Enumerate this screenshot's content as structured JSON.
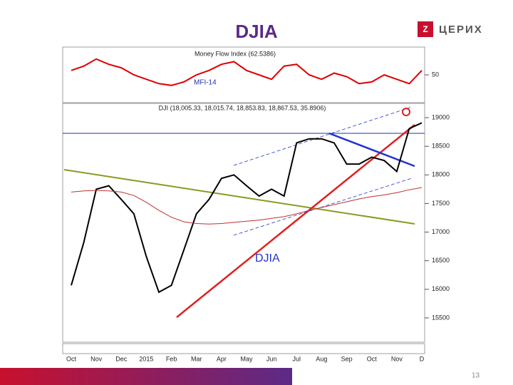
{
  "title": "DJIA",
  "logo": "ЦЕРИХ",
  "page_number": "13",
  "chart_data": [
    {
      "type": "line",
      "title": "Money Flow Index (62.5386)",
      "annotation": "MFI-14",
      "series": [
        {
          "color": "#e00000",
          "values": [
            55,
            60,
            68,
            62,
            58,
            50,
            45,
            40,
            38,
            42,
            50,
            55,
            62,
            65,
            55,
            50,
            45,
            60,
            62,
            50,
            45,
            52,
            48,
            40,
            42,
            50,
            45,
            40,
            55
          ]
        }
      ],
      "ylim": [
        20,
        80
      ],
      "yticks": [
        50
      ]
    },
    {
      "type": "line",
      "title": "DJI (18,005.33, 18,015.74, 18,853.83, 18,867.53, 35.8906)",
      "annotation": "DJIA",
      "categories": [
        "Oct",
        null,
        "Nov",
        null,
        "Dec",
        null,
        "2015",
        null,
        "Feb",
        null,
        "Mar",
        null,
        "Apr",
        null,
        "May",
        null,
        "Jun",
        null,
        "Jul",
        null,
        "Aug",
        null,
        "Sep",
        null,
        "Oct",
        null,
        "Nov",
        null,
        "D"
      ],
      "series": [
        {
          "color": "#000000",
          "values": [
            16070,
            16820,
            17750,
            17810,
            17570,
            17320,
            16570,
            15950,
            16070,
            16690,
            17320,
            17570,
            17940,
            18000,
            17810,
            17630,
            17750,
            17630,
            18560,
            18630,
            18630,
            18560,
            18190,
            18190,
            18310,
            18250,
            18060,
            18810,
            18910
          ]
        },
        {
          "color": "#c03030",
          "values": [
            17700,
            17720,
            17730,
            17720,
            17700,
            17640,
            17520,
            17380,
            17260,
            17180,
            17150,
            17140,
            17150,
            17170,
            17190,
            17210,
            17240,
            17270,
            17320,
            17380,
            17430,
            17480,
            17530,
            17580,
            17620,
            17650,
            17690,
            17740,
            17780
          ]
        }
      ],
      "ylim": [
        15100,
        19250
      ],
      "yticks": [
        15500,
        16000,
        16500,
        17000,
        17500,
        18000,
        18500,
        19000
      ]
    }
  ]
}
